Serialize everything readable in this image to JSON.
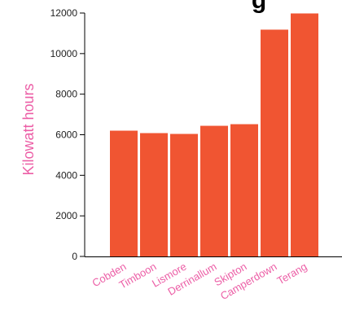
{
  "chart_data": {
    "type": "bar",
    "title": "g",
    "xlabel": "",
    "ylabel": "Kilowatt hours",
    "categories": [
      "Cobden",
      "Timboon",
      "Lismore",
      "Derrinallum",
      "Skipton",
      "Camperdown",
      "Terang"
    ],
    "values": [
      6200,
      6080,
      6040,
      6440,
      6520,
      11180,
      11980
    ],
    "ylim": [
      0,
      12000
    ],
    "yticks": [
      0,
      2000,
      4000,
      6000,
      8000,
      10000,
      12000
    ],
    "grid": false,
    "legend": "none",
    "colors": {
      "bar": "#f05532",
      "axis_label": "#ec5ea6",
      "category_label": "#ec5ea6",
      "tick_label": "#222222",
      "axis_line": "#000000"
    }
  }
}
